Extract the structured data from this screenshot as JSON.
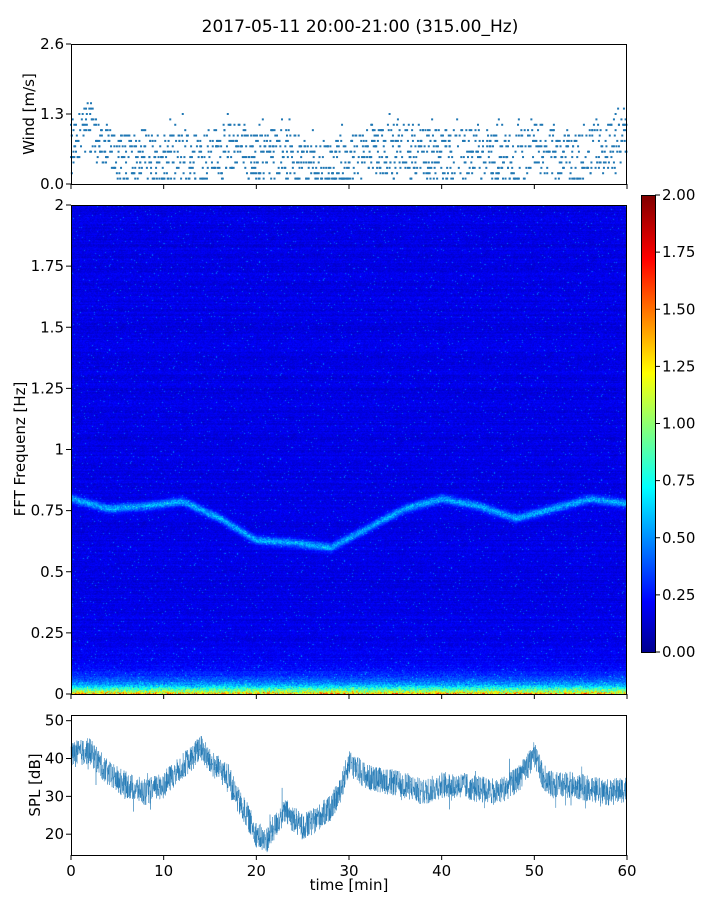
{
  "chart_data": [
    {
      "id": "wind",
      "type": "scatter",
      "title": "2017-05-11 20:00-21:00 (315.00_Hz)",
      "ylabel": "Wind [m/s]",
      "xlim": [
        0,
        60
      ],
      "ylim": [
        0,
        2.6
      ],
      "yticks": [
        "0.0",
        "1.3",
        "2.6"
      ],
      "color": "#1f77b4",
      "series": [
        {
          "x": [
            0,
            2,
            4,
            6,
            8,
            10,
            12,
            14,
            16,
            18,
            20,
            22,
            24,
            26,
            28,
            30,
            32,
            34,
            36,
            38,
            40,
            42,
            44,
            46,
            48,
            50,
            52,
            54,
            56,
            58,
            60
          ],
          "y": [
            0.7,
            1.1,
            0.6,
            0.5,
            0.6,
            0.4,
            0.6,
            0.5,
            0.6,
            0.7,
            0.5,
            0.6,
            0.5,
            0.4,
            0.4,
            0.4,
            0.7,
            0.6,
            0.7,
            0.6,
            0.6,
            0.5,
            0.6,
            0.5,
            0.5,
            0.7,
            0.6,
            0.5,
            0.6,
            0.7,
            1.0
          ]
        }
      ]
    },
    {
      "id": "spectrogram",
      "type": "heatmap",
      "ylabel": "FFT Frequenz [Hz]",
      "xlim": [
        0,
        60
      ],
      "ylim": [
        0,
        2
      ],
      "yticks": [
        "0",
        "0.25",
        "0.5",
        "0.75",
        "1",
        "1.25",
        "1.5",
        "1.75",
        "2"
      ],
      "colormap": "jet",
      "colorbar": {
        "range": [
          0,
          2
        ],
        "ticks": [
          "0.00",
          "0.25",
          "0.50",
          "0.75",
          "1.00",
          "1.25",
          "1.50",
          "1.75",
          "2.00"
        ]
      },
      "ridge": {
        "t": [
          0,
          4,
          8,
          12,
          16,
          20,
          24,
          28,
          32,
          36,
          40,
          44,
          48,
          52,
          56,
          60
        ],
        "freq": [
          0.8,
          0.76,
          0.77,
          0.79,
          0.72,
          0.63,
          0.62,
          0.6,
          0.68,
          0.76,
          0.8,
          0.77,
          0.72,
          0.76,
          0.8,
          0.78
        ]
      }
    },
    {
      "id": "spl",
      "type": "line",
      "ylabel": "SPL [dB]",
      "xlabel": "time [min]",
      "xlim": [
        0,
        60
      ],
      "ylim": [
        14.5,
        51.5
      ],
      "yticks": [
        "20",
        "30",
        "40",
        "50"
      ],
      "xticks": [
        "0",
        "10",
        "20",
        "30",
        "40",
        "50",
        "60"
      ],
      "color": "#1f77b4",
      "series": [
        {
          "x": [
            0,
            2,
            4,
            6,
            8,
            10,
            12,
            13,
            14,
            15,
            16,
            17,
            18,
            19,
            20,
            21,
            22,
            23,
            24,
            25,
            26,
            27,
            28,
            29,
            30,
            31,
            32,
            34,
            36,
            38,
            40,
            42,
            44,
            46,
            48,
            49,
            50,
            51,
            52,
            54,
            56,
            58,
            60
          ],
          "y": [
            41,
            42,
            36,
            33,
            31,
            33,
            38,
            40,
            43,
            39,
            37,
            35,
            29,
            25,
            20,
            18,
            22,
            26,
            24,
            22,
            23,
            25,
            27,
            31,
            39,
            37,
            35,
            34,
            33,
            31,
            33,
            33,
            32,
            31,
            34,
            37,
            41,
            35,
            33,
            33,
            32,
            31,
            32
          ]
        }
      ]
    }
  ]
}
